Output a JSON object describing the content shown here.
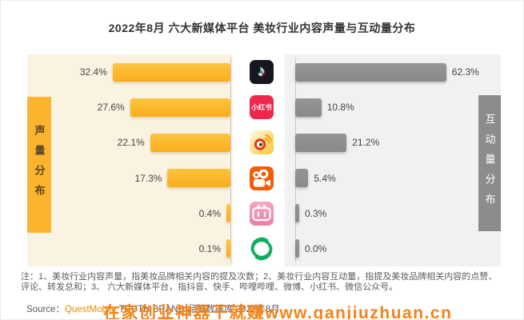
{
  "page": {
    "title": "2022年8月 六大新媒体平台 美妆行业内容声量与互动量分布"
  },
  "chart_data": {
    "type": "bar",
    "orientation": "horizontal-mirrored",
    "title": "2022年8月 六大新媒体平台 美妆行业内容声量与互动量分布",
    "categories": [
      "抖音",
      "小红书",
      "微博",
      "快手",
      "哔哩哔哩",
      "微信公众号"
    ],
    "series": [
      {
        "name": "声量分布",
        "unit": "%",
        "values": [
          32.4,
          27.6,
          22.1,
          17.3,
          0.4,
          0.1
        ],
        "bar_color": "#fbb42c",
        "direction": "bars-grow-leftward"
      },
      {
        "name": "互动量分布",
        "unit": "%",
        "values": [
          62.3,
          10.8,
          21.2,
          5.4,
          0.3,
          0.0
        ],
        "bar_color": "#8e8e8e",
        "direction": "bars-grow-rightward"
      }
    ],
    "value_labels": {
      "sov": [
        "32.4%",
        "27.6%",
        "22.1%",
        "17.3%",
        "0.4%",
        "0.1%"
      ],
      "engagement": [
        "62.3%",
        "10.8%",
        "21.2%",
        "5.4%",
        "0.3%",
        "0.0%"
      ]
    },
    "grid": false,
    "legend_position": "vertical-side-banners",
    "left_banner_label": "声量分布",
    "right_banner_label": "互动量分布"
  },
  "banners": {
    "left": "声量分布",
    "right": "互动量分布"
  },
  "icons": [
    {
      "name": "douyin-icon",
      "platform": "抖音",
      "glyph": "♪",
      "bg": "#17171f"
    },
    {
      "name": "xiaohongshu-icon",
      "platform": "小红书",
      "label": "小红书",
      "bg": "#f0274c"
    },
    {
      "name": "weibo-icon",
      "platform": "微博",
      "bg": "#fcc62e"
    },
    {
      "name": "kuaishou-icon",
      "platform": "快手",
      "bg": "#f55b05"
    },
    {
      "name": "bilibili-icon",
      "platform": "哔哩哔哩",
      "bg": "#ec7fa3"
    },
    {
      "name": "wechat-mp-icon",
      "platform": "微信公众号",
      "color": "#0fae5e"
    }
  ],
  "footnote": {
    "line1": "注：1、美妆行业内容声量，指美妆品牌相关内容的提及次数；2、美妆行业内容互动量，指提及美妆品牌相关内容的点赞、",
    "line2": "评论、转发总和；3、 六大新媒体平台，指抖音、快手、哔哩哔哩、微博、小红书、微信公众号。"
  },
  "source": {
    "prefix": "Source：",
    "brand": "QuestMobile",
    "rest": " TRUTH BRAND 品牌数据库 2022年8月"
  },
  "watermark": "在家创业神器干就赚www.ganjiuzhuan.cn",
  "colors": {
    "sov_bar": "#fbb42c",
    "sov_panel_bg": "#faf3e1",
    "sov_banner_bg": "#fcb32f",
    "eng_bar": "#8e8e8e",
    "eng_panel_bg": "#f1f1f1",
    "eng_banner_bg": "#8c8c8c",
    "watermark_orange": "#f28318",
    "source_brand_orange": "#f28a00"
  }
}
